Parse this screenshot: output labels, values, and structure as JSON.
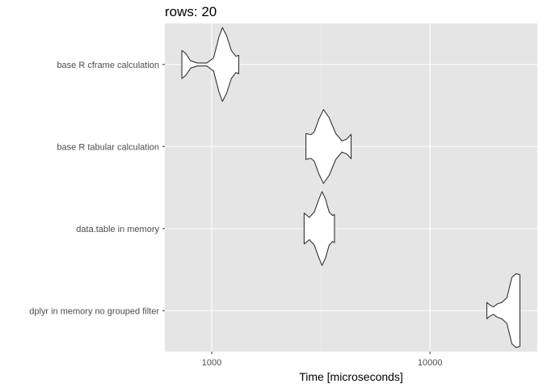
{
  "chart_data": {
    "type": "violin",
    "title": "rows: 20",
    "xlabel": "Time [microseconds]",
    "ylabel": "",
    "x_scale": "log10",
    "xlim": [
      610,
      31000
    ],
    "x_ticks": [
      1000,
      10000
    ],
    "x_tick_labels": [
      "1000",
      "10000"
    ],
    "grid": true,
    "legend": "none",
    "categories": [
      "base R cframe calculation",
      "base R tabular calculation",
      "data.table in memory",
      "dplyr in memory no grouped filter"
    ],
    "series": [
      {
        "category": "base R cframe calculation",
        "min": 730,
        "max": 1330,
        "density": [
          [
            730,
            0.38
          ],
          [
            760,
            0.3
          ],
          [
            800,
            0.1
          ],
          [
            860,
            0.04
          ],
          [
            950,
            0.04
          ],
          [
            1020,
            0.18
          ],
          [
            1080,
            0.75
          ],
          [
            1120,
            1.0
          ],
          [
            1170,
            0.78
          ],
          [
            1230,
            0.38
          ],
          [
            1290,
            0.22
          ],
          [
            1330,
            0.25
          ]
        ]
      },
      {
        "category": "base R tabular calculation",
        "min": 2700,
        "max": 4350,
        "density": [
          [
            2700,
            0.35
          ],
          [
            2850,
            0.32
          ],
          [
            2950,
            0.4
          ],
          [
            3100,
            0.75
          ],
          [
            3250,
            1.0
          ],
          [
            3450,
            0.78
          ],
          [
            3700,
            0.35
          ],
          [
            3950,
            0.15
          ],
          [
            4150,
            0.2
          ],
          [
            4350,
            0.33
          ]
        ]
      },
      {
        "category": "data.table in memory",
        "min": 2650,
        "max": 3650,
        "density": [
          [
            2650,
            0.42
          ],
          [
            2800,
            0.3
          ],
          [
            2950,
            0.45
          ],
          [
            3100,
            0.8
          ],
          [
            3200,
            1.0
          ],
          [
            3320,
            0.8
          ],
          [
            3450,
            0.45
          ],
          [
            3580,
            0.35
          ],
          [
            3650,
            0.38
          ]
        ]
      },
      {
        "category": "dplyr in memory no grouped filter",
        "min": 18200,
        "max": 25800,
        "density": [
          [
            18200,
            0.22
          ],
          [
            18800,
            0.15
          ],
          [
            19500,
            0.1
          ],
          [
            20300,
            0.18
          ],
          [
            21300,
            0.22
          ],
          [
            22500,
            0.35
          ],
          [
            23700,
            0.9
          ],
          [
            24800,
            1.0
          ],
          [
            25800,
            0.97
          ]
        ]
      }
    ]
  }
}
